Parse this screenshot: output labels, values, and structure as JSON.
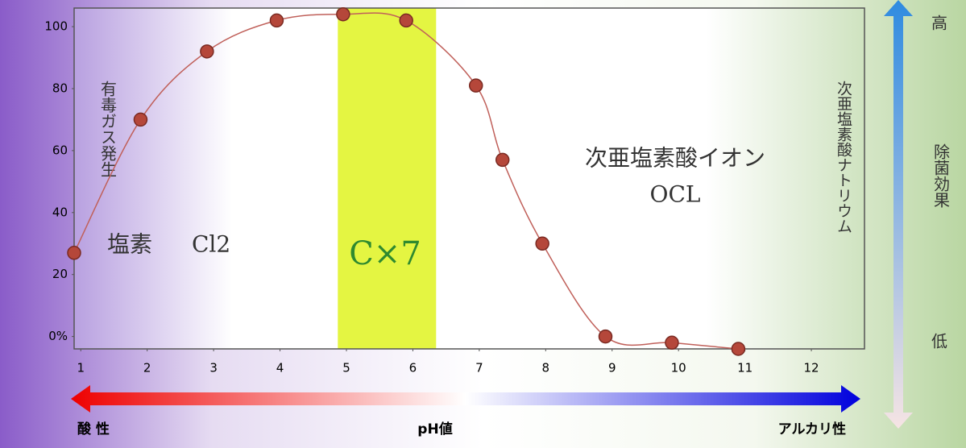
{
  "chart_data": {
    "type": "line",
    "x": [
      0.9,
      1.9,
      2.9,
      3.95,
      4.95,
      5.9,
      6.95,
      7.35,
      7.95,
      8.9,
      9.9,
      10.9
    ],
    "series": [
      {
        "color": "#b5473a",
        "values": [
          27,
          70,
          92,
          102,
          104,
          102,
          81,
          57,
          30,
          0,
          -2,
          -4
        ]
      }
    ],
    "xlim": [
      0.9,
      12.8
    ],
    "ylim": [
      -4,
      106
    ],
    "xticks": [
      1,
      2,
      3,
      4,
      5,
      6,
      7,
      8,
      9,
      10,
      11,
      12
    ],
    "yticks": [
      {
        "value": 0,
        "label": "0%"
      },
      20,
      40,
      60,
      80,
      100
    ],
    "highlight_range": [
      4.87,
      6.35
    ],
    "highlight_color": "#e4f542",
    "annotations": {
      "toxic": "有毒ガス発生",
      "chlorine": "塩素",
      "cl2": "Cl2",
      "cx7": "C×7",
      "ion": "次亜塩素酸イオン",
      "ocl": "OCL",
      "sodium": "次亜塩素酸ナトリウム"
    },
    "bottom": {
      "acid": "酸 性",
      "ph": "pH値",
      "alkali": "アルカリ性"
    },
    "right": {
      "high": "高",
      "effect": "除菌効果",
      "low": "低"
    }
  }
}
